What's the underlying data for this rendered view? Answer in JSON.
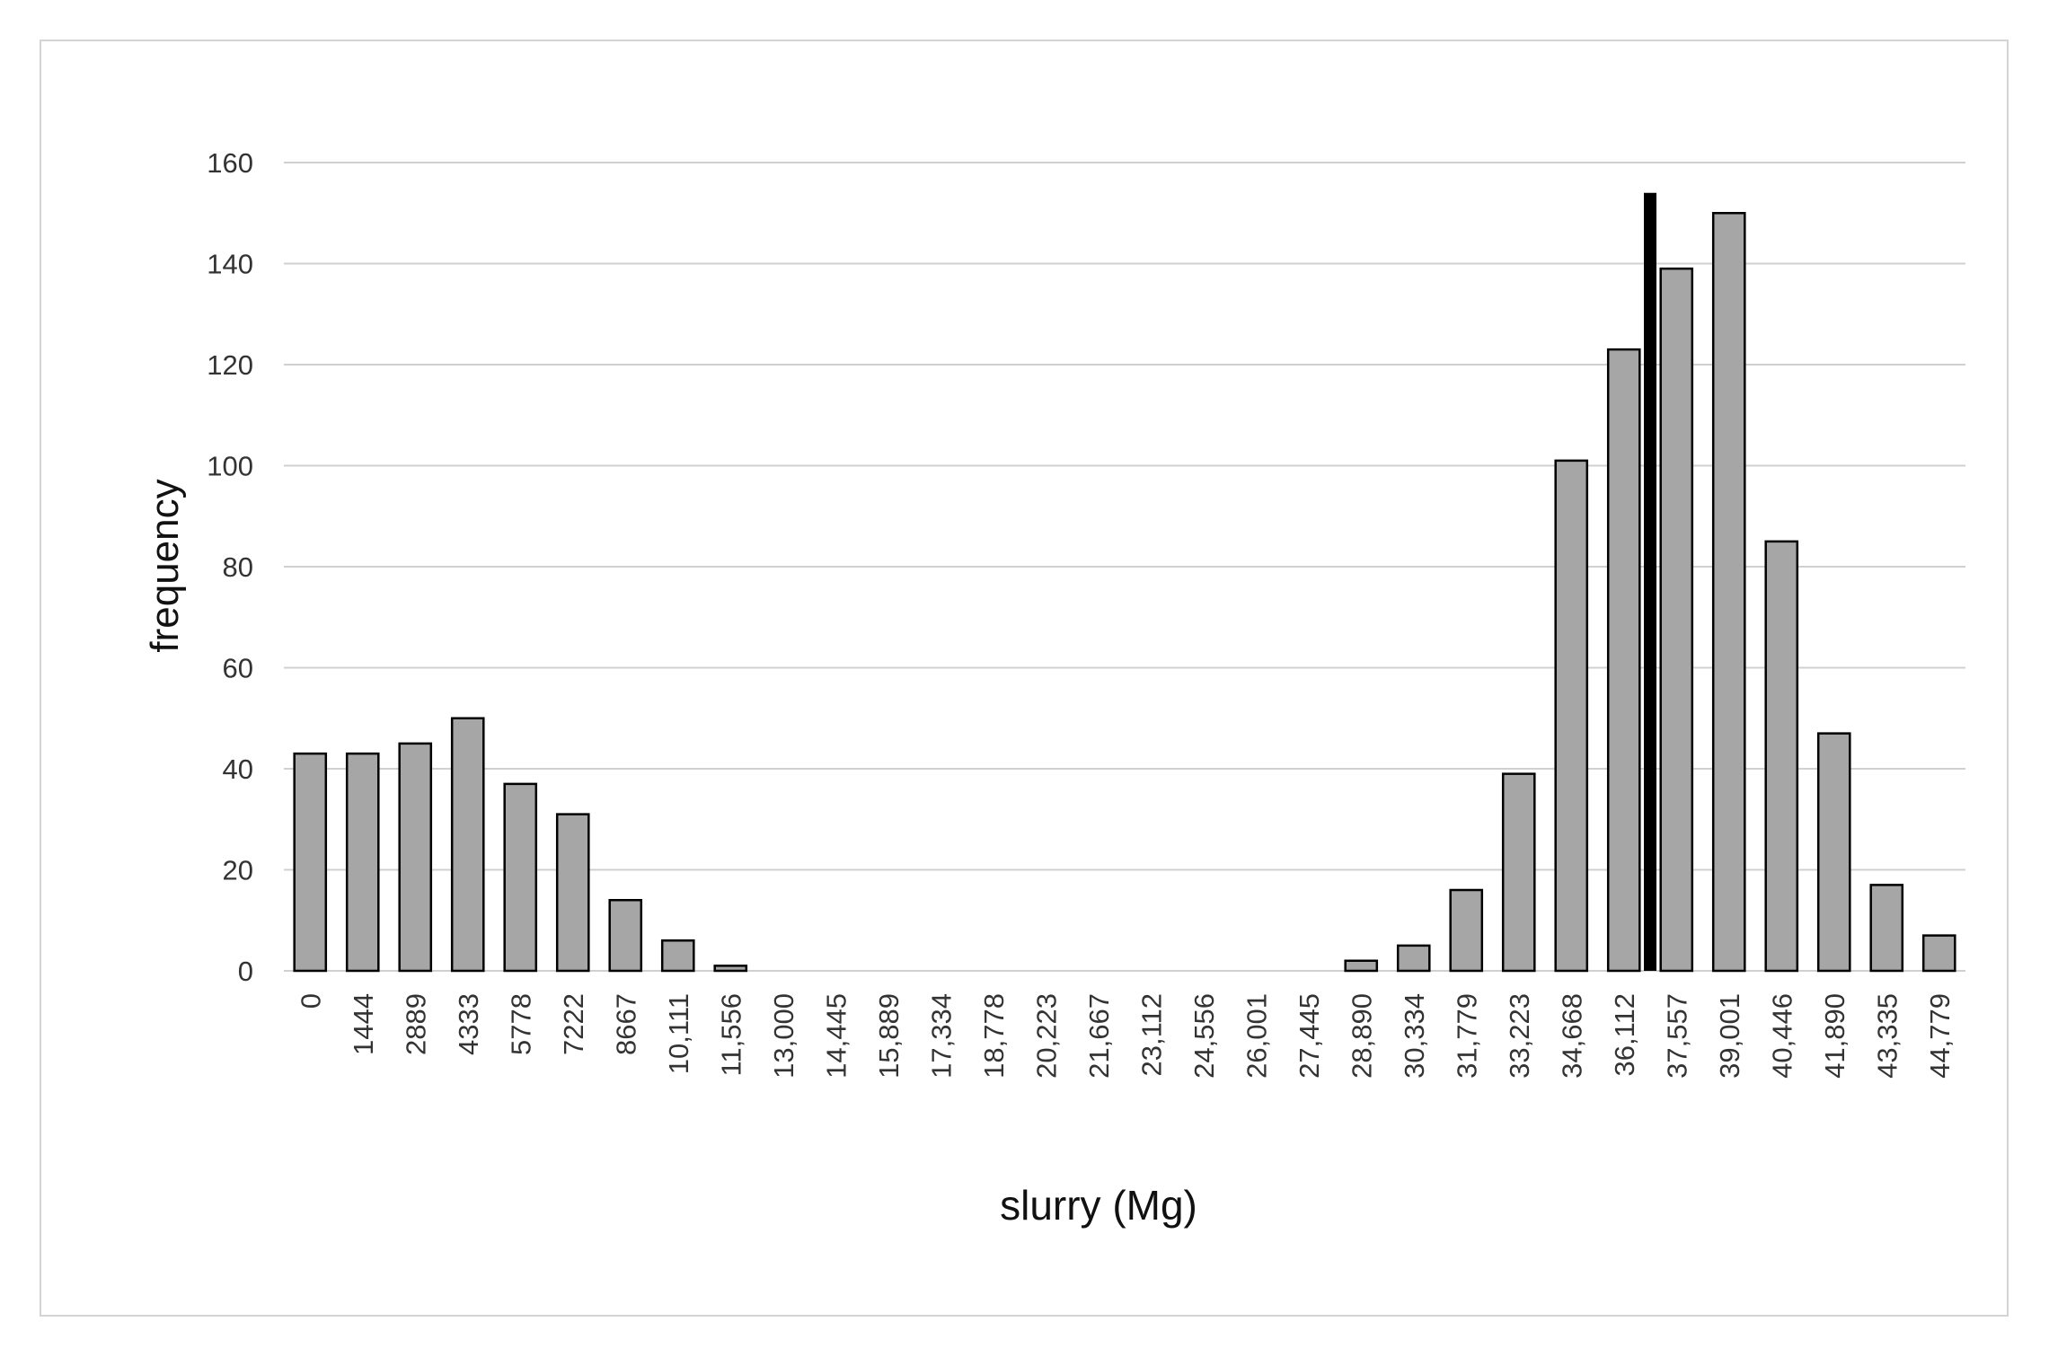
{
  "chart_data": {
    "type": "bar",
    "title": "",
    "xlabel": "slurry (Mg)",
    "ylabel": "frequency",
    "ylim": [
      0,
      160
    ],
    "yticks": [
      0,
      20,
      40,
      60,
      80,
      100,
      120,
      140,
      160
    ],
    "grid": "horizontal",
    "legend": "none",
    "categories": [
      "0",
      "1444",
      "2889",
      "4333",
      "5778",
      "7222",
      "8667",
      "10,111",
      "11,556",
      "13,000",
      "14,445",
      "15,889",
      "17,334",
      "18,778",
      "20,223",
      "21,667",
      "23,112",
      "24,556",
      "26,001",
      "27,445",
      "28,890",
      "30,334",
      "31,779",
      "33,223",
      "34,668",
      "36,112",
      "37,557",
      "39,001",
      "40,446",
      "41,890",
      "43,335",
      "44,779"
    ],
    "values": [
      43,
      43,
      45,
      50,
      37,
      31,
      14,
      6,
      1,
      0,
      0,
      0,
      0,
      0,
      0,
      0,
      0,
      0,
      0,
      0,
      2,
      5,
      16,
      39,
      101,
      123,
      139,
      150,
      85,
      47,
      17,
      7
    ],
    "reference_line": {
      "between": [
        "36,112",
        "37,557"
      ],
      "top_value": 154,
      "color": "#000000"
    },
    "colors": {
      "bar_fill": "#a6a6a6",
      "bar_edge": "#000000",
      "grid": "#d0d0d0",
      "frame": "#d4d4d4"
    }
  }
}
